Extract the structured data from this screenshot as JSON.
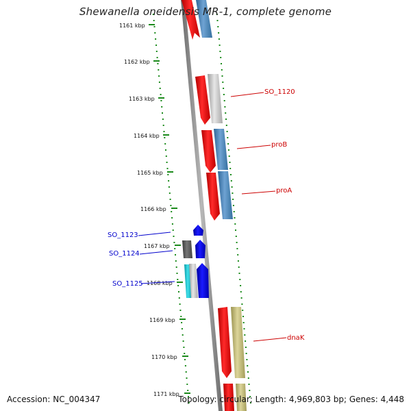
{
  "title": "Shewanella oneidensis MR-1, complete genome",
  "footer": {
    "accession": "Accession: NC_004347",
    "topology": "Topology: circular; Length: 4,969,803 bp; Genes: 4,448"
  },
  "ticks": [
    "1161 kbp",
    "1162 kbp",
    "1163 kbp",
    "1164 kbp",
    "1165 kbp",
    "1166 kbp",
    "1167 kbp",
    "1168 kbp",
    "1169 kbp",
    "1170 kbp",
    "1171 kbp"
  ],
  "gene_labels": [
    {
      "name": "SO_1120",
      "color": "#cc0000"
    },
    {
      "name": "proB",
      "color": "#cc0000"
    },
    {
      "name": "proA",
      "color": "#cc0000"
    },
    {
      "name": "SO_1123",
      "color": "#0000cc"
    },
    {
      "name": "SO_1124",
      "color": "#0000cc"
    },
    {
      "name": "SO_1125",
      "color": "#0000cc"
    },
    {
      "name": "dnaK",
      "color": "#cc0000"
    }
  ],
  "colors": {
    "cds_red": "#ff0000",
    "cds_blue": "#0000ff",
    "feature_steelblue": "#4a86c0",
    "feature_grey": "#c8c8c8",
    "feature_khaki": "#c2bb7a",
    "feature_dark": "#555555",
    "feature_cyan": "#17c0cc",
    "backbone": "#888888",
    "ruler_green": "#1a8a1a"
  }
}
